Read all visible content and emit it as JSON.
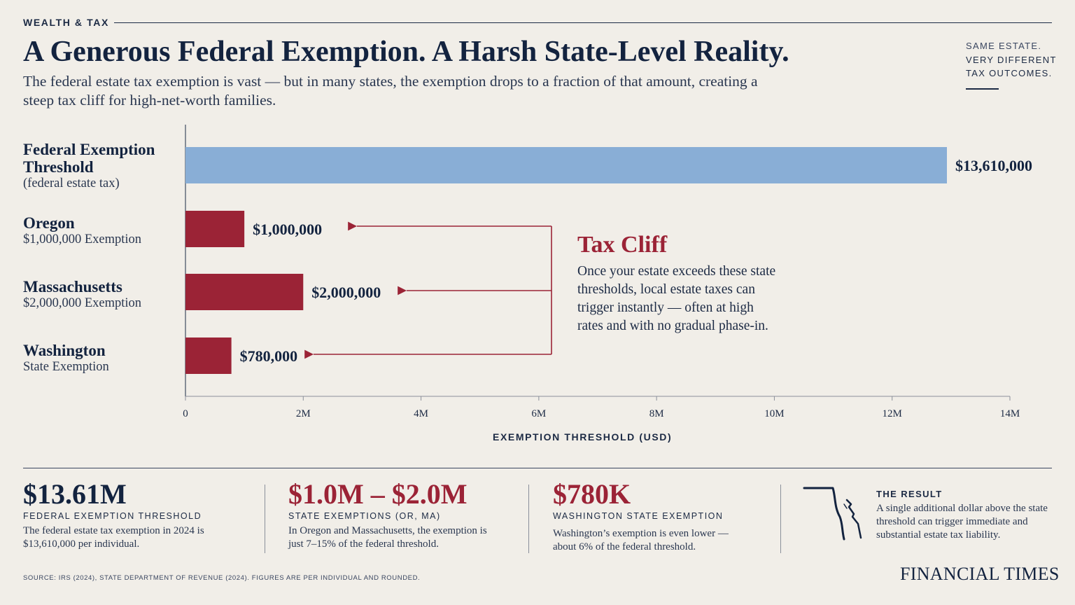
{
  "header": {
    "section": "WEALTH & TAX",
    "title": "A Generous Federal Exemption. A Harsh State-Level Reality.",
    "subtitle": "The federal estate tax exemption is vast — but in many states, the exemption drops to a fraction of that amount, creating a steep tax cliff for high-net-worth families.",
    "side_note": [
      "SAME ESTATE.",
      "VERY DIFFERENT",
      "TAX OUTCOMES."
    ]
  },
  "rows": [
    {
      "main": "Federal Exemption Threshold",
      "sub": "(federal estate tax)"
    },
    {
      "main": "Oregon",
      "sub": "$1,000,000 Exemption"
    },
    {
      "main": "Massachusetts",
      "sub": "$2,000,000 Exemption"
    },
    {
      "main": "Washington",
      "sub": "State Exemption"
    }
  ],
  "colors": {
    "federal": "#89aed6",
    "state": "#9b2336",
    "ink": "#13233f"
  },
  "chart_data": {
    "type": "bar",
    "orientation": "horizontal",
    "categories": [
      "Federal Exemption Threshold",
      "Oregon",
      "Massachusetts",
      "Washington"
    ],
    "values": [
      13610000,
      1000000,
      2000000,
      780000
    ],
    "value_labels": [
      "$13,610,000",
      "$1,000,000",
      "$2,000,000",
      "$780,000"
    ],
    "xlim": [
      0,
      14000000
    ],
    "ticks": [
      0,
      2000000,
      4000000,
      6000000,
      8000000,
      10000000,
      12000000,
      14000000
    ],
    "tick_labels": [
      "0",
      "2M",
      "4M",
      "6M",
      "8M",
      "10M",
      "12M",
      "14M"
    ],
    "xlabel": "EXEMPTION THRESHOLD (USD)"
  },
  "annotation": {
    "title": "Tax Cliff",
    "body": "Once your estate exceeds these state thresholds, local estate taxes can trigger instantly — often at high rates and with no gradual phase-in."
  },
  "stats": [
    {
      "value": "$13.61M",
      "label": "FEDERAL EXEMPTION THRESHOLD",
      "body": "The federal estate tax exemption in 2024 is $13,610,000 per individual."
    },
    {
      "value": "$1.0M – $2.0M",
      "label": "STATE EXEMPTIONS (OR, MA)",
      "body": "In Oregon and Massachusetts, the exemption is just 7–15% of the federal threshold."
    },
    {
      "value": "$780K",
      "label": "WASHINGTON STATE EXEMPTION",
      "body": "Washington’s exemption is even lower — about 6% of the federal threshold."
    }
  ],
  "result": {
    "title": "THE RESULT",
    "body": "A single additional dollar above the state threshold can trigger immediate and substantial estate tax liability."
  },
  "footer": {
    "source": "SOURCE: IRS (2024), STATE DEPARTMENT OF REVENUE (2024). FIGURES ARE PER INDIVIDUAL AND ROUNDED.",
    "brand": "FINANCIAL TIMES"
  }
}
